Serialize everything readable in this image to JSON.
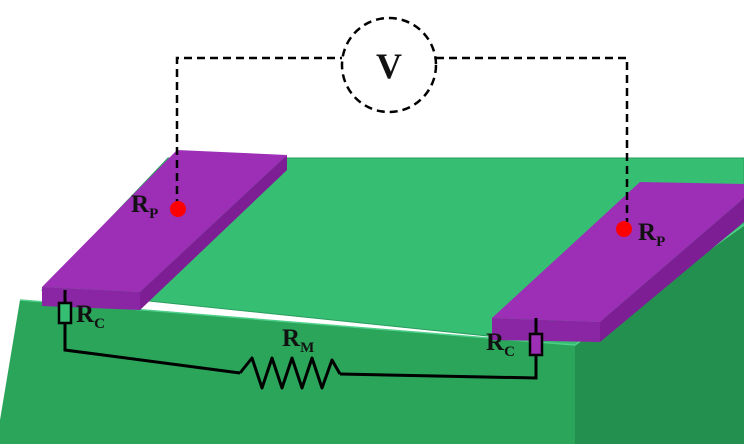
{
  "diagram": {
    "voltmeter": {
      "symbol": "V"
    },
    "labels": {
      "probe_left": {
        "main": "R",
        "sub": "P"
      },
      "probe_right": {
        "main": "R",
        "sub": "P"
      },
      "contact_left": {
        "main": "R",
        "sub": "C"
      },
      "contact_right": {
        "main": "R",
        "sub": "C"
      },
      "material": {
        "main": "R",
        "sub": "M"
      }
    },
    "colors": {
      "substrate_top": "#36be72",
      "substrate_front": "#2aa55a",
      "substrate_side": "#239050",
      "electrode_top": "#9d2fb6",
      "electrode_side": "#7d1e95",
      "probe_dot": "#ff0000",
      "wire": "#000000"
    }
  }
}
